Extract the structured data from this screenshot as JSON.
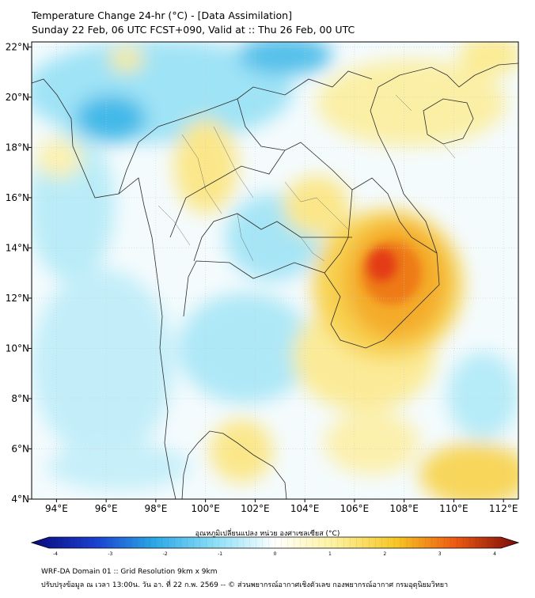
{
  "title_line1": "Temperature Change 24-hr (°C) - [Data Assimilation]",
  "title_line2": "Sunday 22 Feb, 06 UTC FCST+090, Valid at :: Thu 26 Feb, 00 UTC",
  "map": {
    "lon_ticks": [
      "94°E",
      "96°E",
      "98°E",
      "100°E",
      "102°E",
      "104°E",
      "106°E",
      "108°E",
      "110°E",
      "112°E"
    ],
    "lat_ticks": [
      "22°N",
      "20°N",
      "18°N",
      "16°N",
      "14°N",
      "12°N",
      "10°N",
      "8°N",
      "6°N",
      "4°N"
    ]
  },
  "colorbar": {
    "title": "อุณหภูมิเปลี่ยนแปลง หน่วย องศาเซลเซียส (°C)",
    "ticks": [
      "-4",
      "-3",
      "-2",
      "-1",
      "0",
      "1",
      "2",
      "3",
      "4"
    ],
    "colors": [
      "#0a0a7a",
      "#1a3fd0",
      "#2aa7e6",
      "#8fe0f7",
      "#ffffff",
      "#fdf2a0",
      "#f6c623",
      "#ee5a12",
      "#7a0a0a"
    ]
  },
  "footer_line1": "WRF-DA Domain 01 :: Grid Resolution 9km x 9km",
  "footer_line2": "ปรับปรุงข้อมูล ณ เวลา 13:00น. วัน อา. ที่ 22 ก.พ. 2569 -- © ส่วนพยากรณ์อากาศเชิงตัวเลข กองพยากรณ์อากาศ กรมอุตุนิยมวิทยา"
}
